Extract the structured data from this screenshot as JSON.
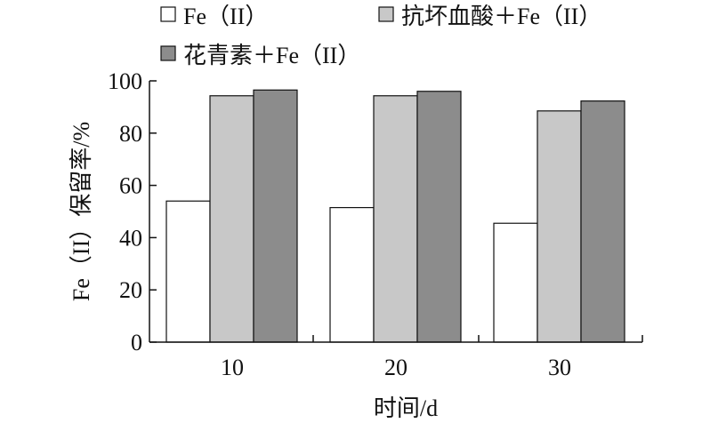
{
  "chart_data": {
    "type": "bar",
    "categories": [
      "10",
      "20",
      "30"
    ],
    "series": [
      {
        "name": "Fe（II）",
        "values": [
          54,
          51.5,
          45.5
        ],
        "color": "#ffffff"
      },
      {
        "name": "抗坏血酸＋Fe（II）",
        "values": [
          94.3,
          94.3,
          88.5
        ],
        "color": "#c8c8c8"
      },
      {
        "name": "花青素＋Fe（II）",
        "values": [
          96.5,
          96,
          92.3
        ],
        "color": "#8c8c8c"
      }
    ],
    "xlabel": "时间/d",
    "ylabel": "Fe（II）保留率/%",
    "ylim": [
      0,
      100
    ],
    "yticks": [
      0,
      20,
      40,
      60,
      80,
      100
    ],
    "grid": false,
    "legend_position": "top"
  }
}
